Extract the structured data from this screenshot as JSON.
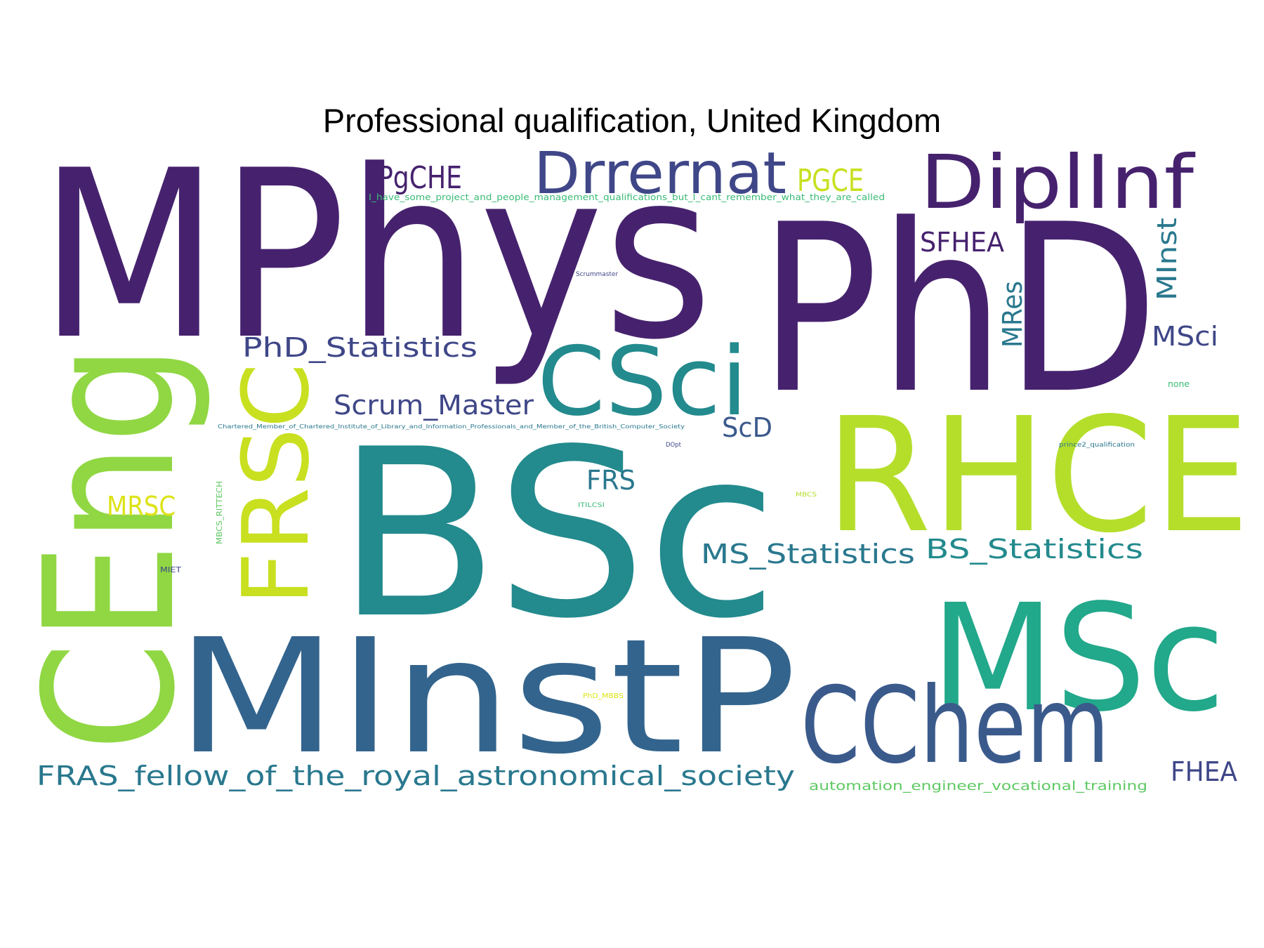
{
  "title": "Professional qualification, United Kingdom",
  "palette": {
    "dark_purple": "#46226e",
    "indigo": "#3f4788",
    "blue": "#33648d",
    "teal_blue": "#29788e",
    "teal": "#238a8d",
    "green_teal": "#22a884",
    "green": "#5ec962",
    "lime": "#90d743",
    "yellow_green": "#b5de2b",
    "yellow": "#dde318"
  },
  "words": [
    {
      "text": "MPhys",
      "color": "#46226e"
    },
    {
      "text": "PhD",
      "color": "#46226e"
    },
    {
      "text": "BSc",
      "color": "#238a8d"
    },
    {
      "text": "MInstP",
      "color": "#33648d"
    },
    {
      "text": "CEng",
      "color": "#90d743"
    },
    {
      "text": "RHCE",
      "color": "#b5de2b"
    },
    {
      "text": "MSc",
      "color": "#22a88a"
    },
    {
      "text": "CChem",
      "color": "#3b5a8c"
    },
    {
      "text": "CSci",
      "color": "#238a8d"
    },
    {
      "text": "FRSC",
      "color": "#c8e020"
    },
    {
      "text": "DiplInf",
      "color": "#46226e"
    },
    {
      "text": "Drrernat",
      "color": "#3f4788"
    },
    {
      "text": "PgCHE",
      "color": "#46226e"
    },
    {
      "text": "PGCE",
      "color": "#c8e020"
    },
    {
      "text": "I_have_some_project_and_people_management_qualifications_but_I_cant_remember_what_they_are_called",
      "color": "#3aba76"
    },
    {
      "text": "SFHEA",
      "color": "#46226e"
    },
    {
      "text": "MInst",
      "color": "#29788e"
    },
    {
      "text": "MRes",
      "color": "#29788e"
    },
    {
      "text": "MSci",
      "color": "#3f4788"
    },
    {
      "text": "Scrummaster",
      "color": "#3f4788"
    },
    {
      "text": "PhD_Statistics",
      "color": "#3f4788"
    },
    {
      "text": "Scrum_Master",
      "color": "#3f4788"
    },
    {
      "text": "ScD",
      "color": "#3b5a8c"
    },
    {
      "text": "none",
      "color": "#3aba76"
    },
    {
      "text": "Chartered_Member_of_Chartered_Institute_of_Library_and_Information_Professionals_and_Member_of_the_British_Computer_Society",
      "color": "#29788e"
    },
    {
      "text": "DOpt",
      "color": "#3f4788"
    },
    {
      "text": "prince2_qualification",
      "color": "#29788e"
    },
    {
      "text": "FRS",
      "color": "#29788e"
    },
    {
      "text": "MRSC",
      "color": "#dde318"
    },
    {
      "text": "MBCS_RITTECH",
      "color": "#5ec962"
    },
    {
      "text": "ITILCSI",
      "color": "#3aba76"
    },
    {
      "text": "MBCS",
      "color": "#b5de2b"
    },
    {
      "text": "MIET",
      "color": "#3f4788"
    },
    {
      "text": "MS_Statistics",
      "color": "#29788e"
    },
    {
      "text": "BS_Statistics",
      "color": "#238a8d"
    },
    {
      "text": "PhD_MBBS",
      "color": "#dde318"
    },
    {
      "text": "FRAS_fellow_of_the_royal_astronomical_society",
      "color": "#29788e"
    },
    {
      "text": "automation_engineer_vocational_training",
      "color": "#5ec962"
    },
    {
      "text": "FHEA",
      "color": "#3f4788"
    }
  ]
}
